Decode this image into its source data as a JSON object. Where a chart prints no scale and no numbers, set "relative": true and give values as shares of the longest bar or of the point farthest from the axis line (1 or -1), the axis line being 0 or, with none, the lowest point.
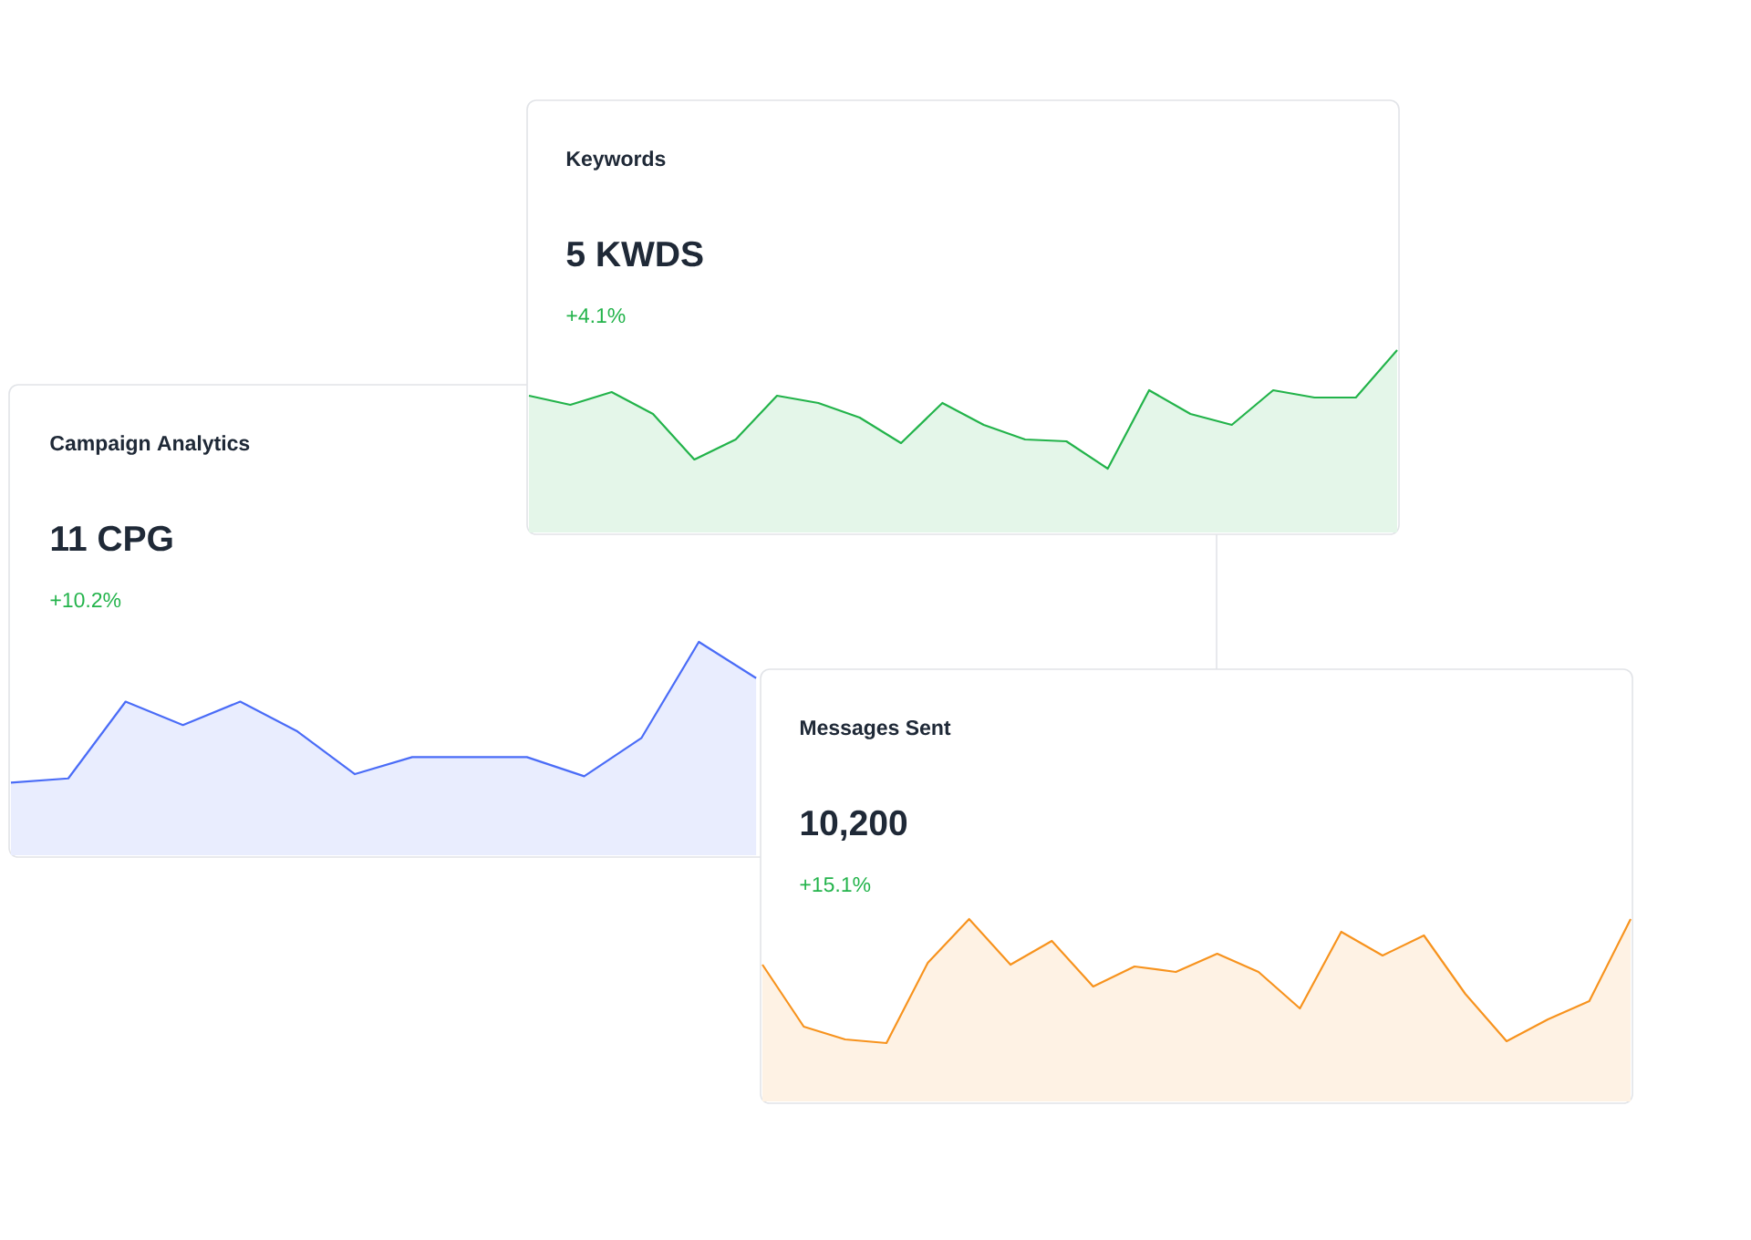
{
  "chart_data": [
    {
      "type": "area",
      "title": "Keywords",
      "subtitle": "5 KWDS",
      "annotations": [
        "+4.1%"
      ],
      "relative": true,
      "color": "#22b34a",
      "categories": [
        null,
        null,
        null,
        null,
        null,
        null,
        null,
        null,
        null,
        null,
        null,
        null,
        null,
        null,
        null,
        null,
        null,
        null,
        null,
        null,
        null,
        null
      ],
      "values": [
        0.75,
        0.7,
        0.77,
        0.65,
        0.4,
        0.51,
        0.75,
        0.71,
        0.63,
        0.49,
        0.71,
        0.59,
        0.51,
        0.5,
        0.35,
        0.78,
        0.65,
        0.59,
        0.78,
        0.74,
        0.74,
        1
      ]
    },
    {
      "type": "area",
      "title": "Campaign Analytics",
      "subtitle": "11 CPG",
      "annotations": [
        "+10.2%"
      ],
      "relative": true,
      "color": "#4a6cf7",
      "categories": [
        null,
        null,
        null,
        null,
        null,
        null,
        null,
        null,
        null,
        null,
        null,
        null,
        null,
        null,
        null,
        null,
        null,
        null,
        null,
        null,
        null,
        null
      ],
      "values": [
        0.34,
        0.36,
        0.72,
        0.61,
        0.72,
        0.58,
        0.38,
        0.46,
        0.46,
        0.46,
        0.37,
        0.55,
        1,
        0.83,
        null,
        null,
        null,
        null,
        null,
        null,
        null,
        null
      ]
    },
    {
      "type": "area",
      "title": "Messages Sent",
      "subtitle": "10,200",
      "annotations": [
        "+15.1%"
      ],
      "relative": true,
      "color": "#f7931e",
      "categories": [
        null,
        null,
        null,
        null,
        null,
        null,
        null,
        null,
        null,
        null,
        null,
        null,
        null,
        null,
        null,
        null,
        null,
        null,
        null,
        null,
        null,
        null
      ],
      "values": [
        0.75,
        0.41,
        0.34,
        0.32,
        0.76,
        1,
        0.75,
        0.88,
        0.63,
        0.74,
        0.71,
        0.81,
        0.71,
        0.51,
        0.93,
        0.8,
        0.91,
        0.59,
        0.33,
        0.45,
        0.55,
        1
      ]
    }
  ]
}
